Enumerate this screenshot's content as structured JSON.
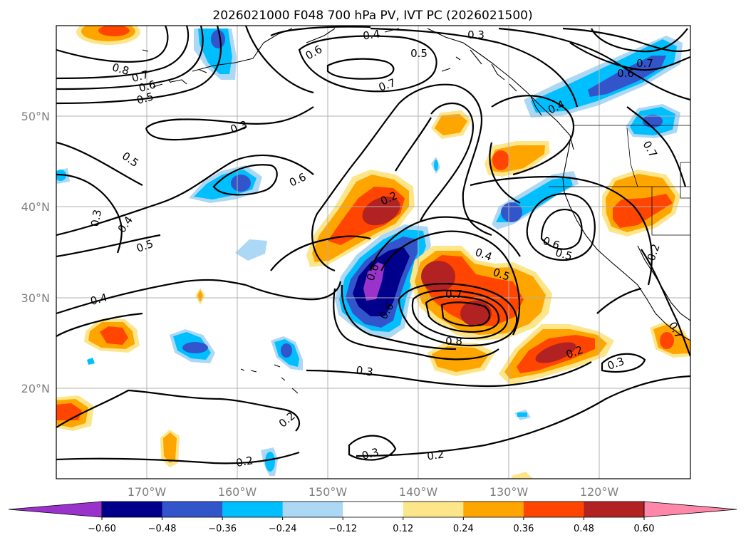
{
  "title": "2026021000 F048 700 hPa PV, IVT PC (2026021500)",
  "lat_labels": [
    "50°N",
    "40°N",
    "30°N",
    "20°N"
  ],
  "lon_labels": [
    "170°W",
    "160°W",
    "150°W",
    "140°W",
    "130°W",
    "120°W"
  ],
  "colorbar": {
    "ticks": [
      "−0.60",
      "−0.48",
      "−0.36",
      "−0.24",
      "−0.12",
      "0.12",
      "0.24",
      "0.36",
      "0.48",
      "0.60"
    ],
    "colors": [
      "#9933cc",
      "#00008b",
      "#3355cc",
      "#00bfff",
      "#add8f5",
      "#ffffff",
      "#fde58a",
      "#ffa500",
      "#ff4500",
      "#b22222",
      "#ff88aa"
    ]
  },
  "colors": {
    "pos_light": "#fde58a",
    "pos_orange": "#ffa500",
    "pos_red": "#ff4500",
    "pos_dark": "#b22222",
    "neg_light": "#add8f5",
    "neg_cyan": "#00bfff",
    "neg_blue": "#3355cc",
    "neg_navy": "#00008b",
    "neg_purple": "#9933cc"
  },
  "contour_labels": [
    "0.4",
    "0.3",
    "0.6",
    "0.5",
    "0.7",
    "0.8",
    "0.7",
    "0.6",
    "0.5",
    "0.6",
    "0.7",
    "0.4",
    "0.3",
    "0.5",
    "0.6",
    "0.2",
    "0.3",
    "0.4",
    "0.5",
    "0.4",
    "0.5",
    "0.6",
    "0.6",
    "0.5",
    "0.7",
    "0.8",
    "0.2",
    "0.3",
    "0.3",
    "0.2",
    "0.2",
    "0.2",
    "0.3",
    "0.2",
    "0.6",
    "0.7",
    "0.4",
    "0.7"
  ]
}
